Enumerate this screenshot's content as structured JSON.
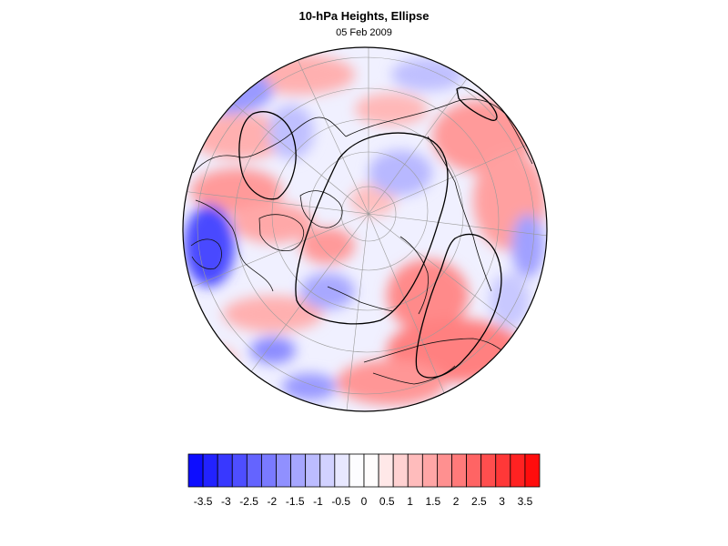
{
  "title": "10-hPa Heights, Ellipse",
  "date": "05 Feb 2009",
  "colorbar": {
    "tick_labels": [
      "-3.5",
      "-3",
      "-2.5",
      "-2",
      "-1.5",
      "-1",
      "-0.5",
      "0",
      "0.5",
      "1",
      "1.5",
      "2",
      "2.5",
      "3",
      "3.5"
    ],
    "colors": [
      "#0d0dff",
      "#2222ff",
      "#3838ff",
      "#4e4eff",
      "#6464ff",
      "#7a7aff",
      "#9090ff",
      "#a6a6ff",
      "#bcbcff",
      "#d2d2ff",
      "#e8e8ff",
      "#fdfdff",
      "#fffdfd",
      "#ffe8e8",
      "#ffd2d2",
      "#ffbcbc",
      "#ffa6a6",
      "#ff9090",
      "#ff7a7a",
      "#ff6464",
      "#ff4e4e",
      "#ff3838",
      "#ff2222",
      "#ff0d0d"
    ]
  },
  "colors": {
    "positive": "#ff5a5a",
    "negative": "#5a5aff",
    "neutral": "#f4f4ff",
    "coastline": "#000000"
  }
}
